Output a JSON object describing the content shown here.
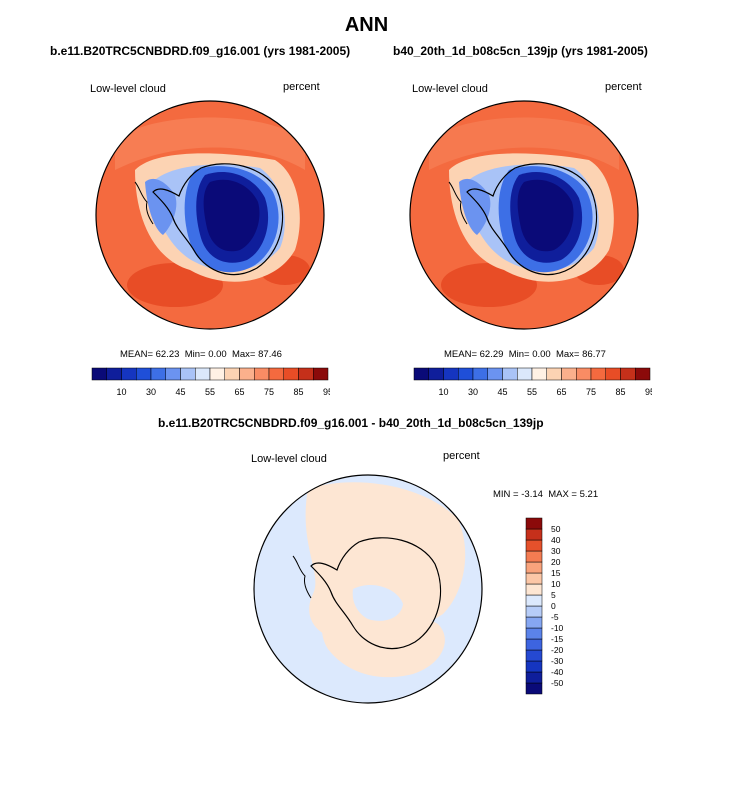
{
  "figure": {
    "title": "ANN"
  },
  "chart_data": [
    {
      "type": "heatmap",
      "projection": "south-polar-stereographic",
      "title": "b.e11.B20TRC5CNBDRD.f09_g16.001 (yrs 1981-2005)",
      "left_label": "Low-level cloud",
      "right_label": "percent",
      "stats": {
        "mean_label": "MEAN=",
        "mean": "62.23",
        "min_label": "Min=",
        "min": "0.00",
        "max_label": "Max=",
        "max": "87.46"
      },
      "levels": [
        5,
        10,
        20,
        30,
        40,
        45,
        50,
        55,
        60,
        65,
        70,
        75,
        80,
        85,
        90,
        95
      ],
      "tick_labels": [
        "10",
        "30",
        "45",
        "55",
        "65",
        "75",
        "85",
        "95"
      ],
      "colors": [
        "#0a0a78",
        "#0f1e9b",
        "#1535c0",
        "#1f4fd8",
        "#3d6fe6",
        "#6b93f0",
        "#a9c3f7",
        "#dbe8fb",
        "#fff1e4",
        "#fcd3b3",
        "#fbb08c",
        "#f98c64",
        "#f46a3f",
        "#e84d26",
        "#c5301a",
        "#8b0a0a"
      ]
    },
    {
      "type": "heatmap",
      "projection": "south-polar-stereographic",
      "title": "b40_20th_1d_b08c5cn_139jp (yrs 1981-2005)",
      "left_label": "Low-level cloud",
      "right_label": "percent",
      "stats": {
        "mean_label": "MEAN=",
        "mean": "62.29",
        "min_label": "Min=",
        "min": "0.00",
        "max_label": "Max=",
        "max": "86.77"
      },
      "levels": [
        5,
        10,
        20,
        30,
        40,
        45,
        50,
        55,
        60,
        65,
        70,
        75,
        80,
        85,
        90,
        95
      ],
      "tick_labels": [
        "10",
        "30",
        "45",
        "55",
        "65",
        "75",
        "85",
        "95"
      ],
      "colors": [
        "#0a0a78",
        "#0f1e9b",
        "#1535c0",
        "#1f4fd8",
        "#3d6fe6",
        "#6b93f0",
        "#a9c3f7",
        "#dbe8fb",
        "#fff1e4",
        "#fcd3b3",
        "#fbb08c",
        "#f98c64",
        "#f46a3f",
        "#e84d26",
        "#c5301a",
        "#8b0a0a"
      ]
    },
    {
      "type": "heatmap",
      "projection": "south-polar-stereographic",
      "title": "b.e11.B20TRC5CNBDRD.f09_g16.001 - b40_20th_1d_b08c5cn_139jp",
      "left_label": "Low-level cloud",
      "right_label": "percent",
      "stats": {
        "min_label": "MIN =",
        "min": "-3.14",
        "max_label": "MAX =",
        "max": "5.21"
      },
      "levels": [
        -50,
        -40,
        -30,
        -20,
        -15,
        -10,
        -5,
        0,
        5,
        10,
        15,
        20,
        30,
        40,
        50
      ],
      "tick_labels": [
        "-50",
        "-40",
        "-30",
        "-20",
        "-15",
        "-10",
        "-5",
        "0",
        "5",
        "10",
        "15",
        "20",
        "30",
        "40",
        "50"
      ],
      "colors": [
        "#0a0a78",
        "#0f1e9b",
        "#1535c0",
        "#2549d2",
        "#3d64e0",
        "#5b83ea",
        "#86a7f2",
        "#b7cdf8",
        "#dce9fd",
        "#fde6d3",
        "#fcc7a7",
        "#f9a37c",
        "#f47c52",
        "#e5512b",
        "#c6301b",
        "#8b0a0a"
      ]
    }
  ]
}
